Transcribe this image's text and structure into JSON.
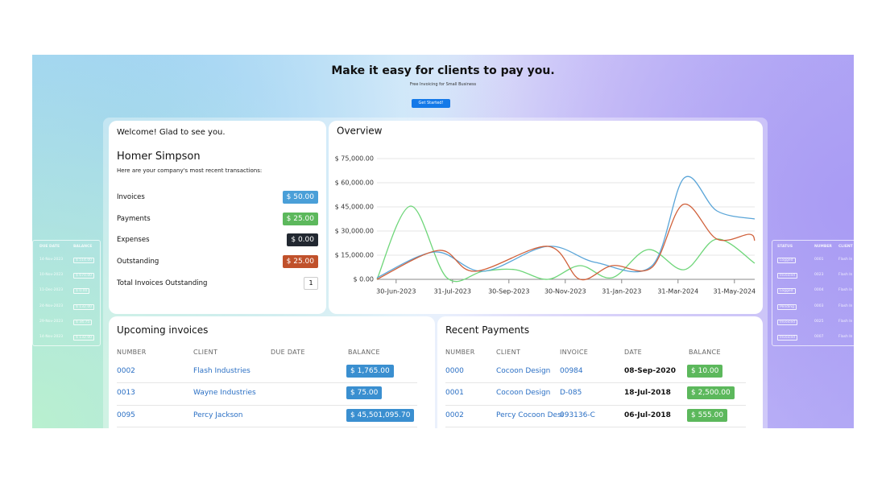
{
  "header": {
    "title": "Make it easy for clients to pay you.",
    "subtitle": "Free Invoicing for Small Business",
    "button": "Get Started!"
  },
  "welcome": {
    "greeting": "Welcome! Glad to see you.",
    "name": "Homer Simpson",
    "description": "Here are your company's most recent transactions:",
    "items": [
      {
        "label": "Invoices",
        "value": "$ 50.00",
        "color": "#4a9fd8"
      },
      {
        "label": "Payments",
        "value": "$ 25.00",
        "color": "#5cb85c"
      },
      {
        "label": "Expenses",
        "value": "$ 0.00",
        "color": "#222831"
      },
      {
        "label": "Outstanding",
        "value": "$ 25.00",
        "color": "#c0512b"
      }
    ],
    "total_label": "Total Invoices Outstanding",
    "total_value": "1"
  },
  "chart_data": {
    "type": "line",
    "title": "Overview",
    "xlim": [
      -0.34,
      6.36
    ],
    "xticks": [
      {
        "value": 0,
        "label": "30-Jun-2023"
      },
      {
        "value": 1,
        "label": "31-Jul-2023"
      },
      {
        "value": 2,
        "label": "30-Sep-2023"
      },
      {
        "value": 3,
        "label": "30-Nov-2023"
      },
      {
        "value": 4,
        "label": "31-Jan-2023"
      },
      {
        "value": 5,
        "label": "31-Mar-2024"
      },
      {
        "value": 6,
        "label": "31-May-2024"
      }
    ],
    "ylim": [
      0,
      75000
    ],
    "yticks": [
      {
        "value": 0,
        "label": "$ 0.00"
      },
      {
        "value": 15000,
        "label": "$ 15,000.00"
      },
      {
        "value": 30000,
        "label": "$ 30,000.00"
      },
      {
        "value": 45000,
        "label": "$ 45,000.00"
      },
      {
        "value": 60000,
        "label": "$ 60,000.00"
      },
      {
        "value": 75000,
        "label": "$ 75,000.00"
      }
    ],
    "grid": true,
    "series": [
      {
        "color": "#6fd67a",
        "x": [
          -0.34,
          0.26,
          0.9,
          1.54,
          2.11,
          2.69,
          3.26,
          3.83,
          4.47,
          5.11,
          5.69,
          6.36
        ],
        "values": [
          0,
          45500,
          1000,
          5000,
          6000,
          0,
          8500,
          1000,
          18500,
          6000,
          25000,
          10000
        ]
      },
      {
        "color": "#5aa5d8",
        "x": [
          -0.34,
          0.69,
          1.54,
          2.69,
          3.54,
          4.54,
          5.11,
          5.69,
          6.36
        ],
        "values": [
          1000,
          17000,
          5000,
          20500,
          10500,
          8500,
          63000,
          42500,
          37500
        ]
      },
      {
        "color": "#d0603a",
        "x": [
          -0.34,
          0.76,
          1.4,
          2.69,
          3.26,
          3.83,
          4.54,
          5.09,
          5.69,
          6.26,
          6.36
        ],
        "values": [
          0,
          18000,
          5000,
          20500,
          0,
          8500,
          7500,
          46500,
          25000,
          28000,
          24000
        ]
      }
    ]
  },
  "upcoming_invoices": {
    "title": "Upcoming invoices",
    "columns": [
      "NUMBER",
      "CLIENT",
      "DUE DATE",
      "BALANCE"
    ],
    "rows": [
      {
        "number": "0002",
        "client": "Flash Industries",
        "balance": "$ 1,765.00"
      },
      {
        "number": "0013",
        "client": "Wayne Industries",
        "balance": "$ 75.00"
      },
      {
        "number": "0095",
        "client": "Percy Jackson",
        "balance": "$ 45,501,095.70"
      }
    ]
  },
  "recent_payments": {
    "title": "Recent Payments",
    "columns": [
      "NUMBER",
      "CLIENT",
      "INVOICE",
      "DATE",
      "BALANCE"
    ],
    "rows": [
      {
        "number": "0000",
        "client": "Cocoon Design",
        "invoice": "00984",
        "date": "08-Sep-2020",
        "balance": "$ 10.00"
      },
      {
        "number": "0001",
        "client": "Cocoon Design",
        "invoice": "D-085",
        "date": "18-Jul-2018",
        "balance": "$ 2,500.00"
      },
      {
        "number": "0002",
        "client": "Percy Cocoon Desi",
        "invoice": "093136-C",
        "date": "06-Jul-2018",
        "balance": "$ 555.00"
      }
    ]
  },
  "side_left": {
    "columns": [
      "DUE DATE",
      "BALANCE"
    ],
    "rows": [
      [
        "14-Nov-2023",
        "$ 514.00"
      ],
      [
        "10-Nov-2023",
        "$ 670.00"
      ],
      [
        "11-Dec-2023",
        "$ 0.00"
      ],
      [
        "24-Nov-2023",
        "$ 132.00"
      ],
      [
        "29-Nov-2023",
        "$ 34.75"
      ],
      [
        "14-Nov-2023",
        "$ 132.00"
      ]
    ]
  },
  "side_right": {
    "columns": [
      "STATUS",
      "NUMBER",
      "CLIENT"
    ],
    "rows": [
      [
        "Logged",
        "0001",
        "Flash In"
      ],
      [
        "Invoiced",
        "0023",
        "Flash In"
      ],
      [
        "Logged",
        "0004",
        "Flash In"
      ],
      [
        "Pending",
        "0003",
        "Flash In"
      ],
      [
        "Invoiced",
        "0025",
        "Flash In"
      ],
      [
        "Invoiced",
        "0007",
        "Flash In"
      ]
    ]
  }
}
